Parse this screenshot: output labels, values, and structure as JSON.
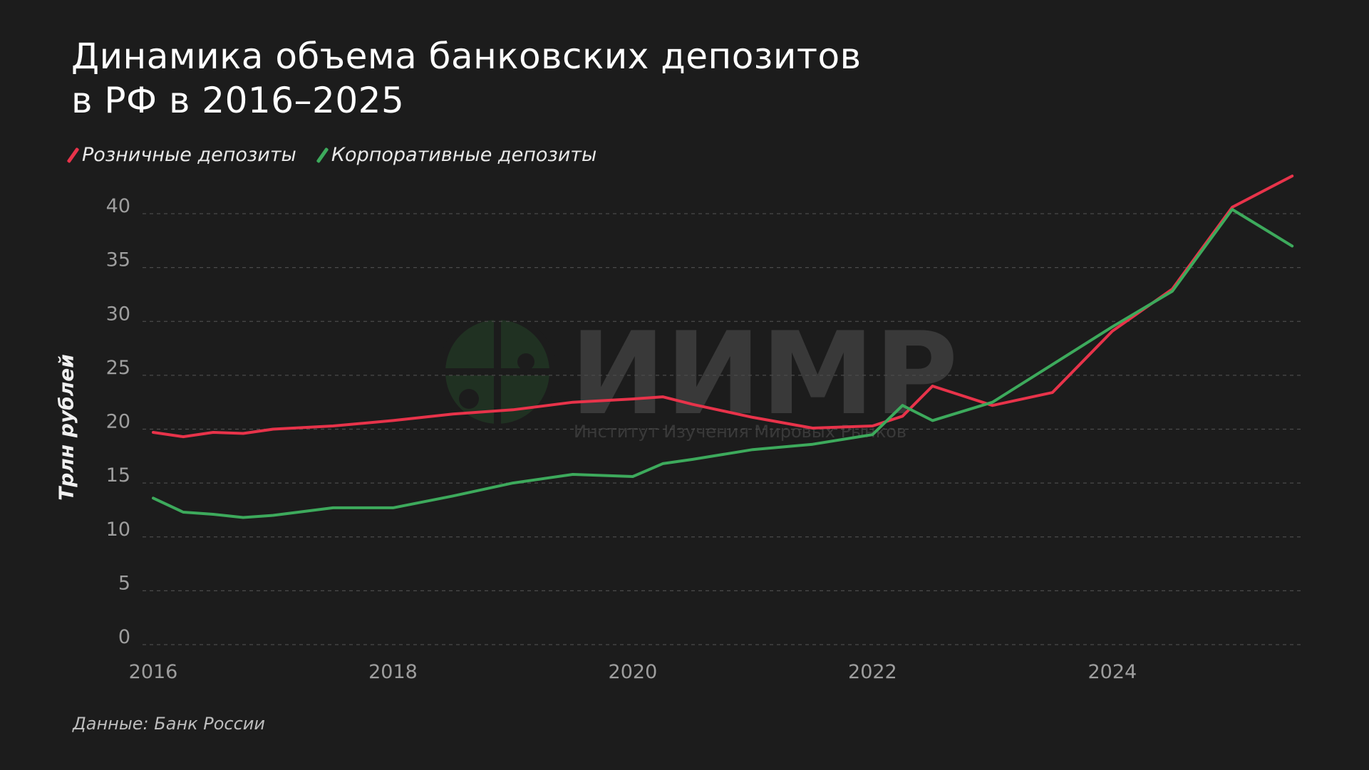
{
  "title": {
    "line1": "Динамика объема банковских депозитов",
    "line2": "в РФ в 2016–2025"
  },
  "legend": {
    "retail": "Розничные депозиты",
    "corporate": "Корпоративные депозиты"
  },
  "ylabel": "Трлн рублей",
  "source": "Данные: Банк России",
  "watermark": {
    "big": "ИИМР",
    "small": "Институт Изучения Мировых Рынков"
  },
  "colors": {
    "background": "#1c1c1c",
    "retail": "#e8334a",
    "corporate": "#3daa5c",
    "grid": "#4a4a4a",
    "tick": "#9e9e9e"
  },
  "chart_data": {
    "type": "line",
    "ylabel": "Трлн рублей",
    "ylim": [
      0,
      40
    ],
    "xlim": [
      2016,
      2025.6
    ],
    "yticks": [
      0,
      5,
      10,
      15,
      20,
      25,
      30,
      35,
      40
    ],
    "xticks": [
      2016,
      2018,
      2020,
      2022,
      2024
    ],
    "grid": "horizontal dashed",
    "legend_position": "top-left",
    "x": [
      2016.0,
      2016.25,
      2016.5,
      2016.75,
      2017.0,
      2017.5,
      2018.0,
      2018.5,
      2019.0,
      2019.5,
      2020.0,
      2020.25,
      2020.5,
      2021.0,
      2021.5,
      2022.0,
      2022.25,
      2022.5,
      2023.0,
      2023.5,
      2024.0,
      2024.5,
      2025.0,
      2025.5
    ],
    "series": [
      {
        "name": "Розничные депозиты",
        "color": "#e8334a",
        "values": [
          19.7,
          19.3,
          19.7,
          19.6,
          20.0,
          20.3,
          20.8,
          21.4,
          21.8,
          22.5,
          22.8,
          23.0,
          22.3,
          21.1,
          20.1,
          20.3,
          21.2,
          24.0,
          22.2,
          23.4,
          29.1,
          33.0,
          40.6,
          43.5
        ]
      },
      {
        "name": "Корпоративные депозиты",
        "color": "#3daa5c",
        "values": [
          13.6,
          12.3,
          12.1,
          11.8,
          12.0,
          12.7,
          12.7,
          13.8,
          15.0,
          15.8,
          15.6,
          16.8,
          17.2,
          18.1,
          18.6,
          19.5,
          22.2,
          20.8,
          22.5,
          26.0,
          29.5,
          32.8,
          40.4,
          37.0
        ]
      }
    ]
  }
}
